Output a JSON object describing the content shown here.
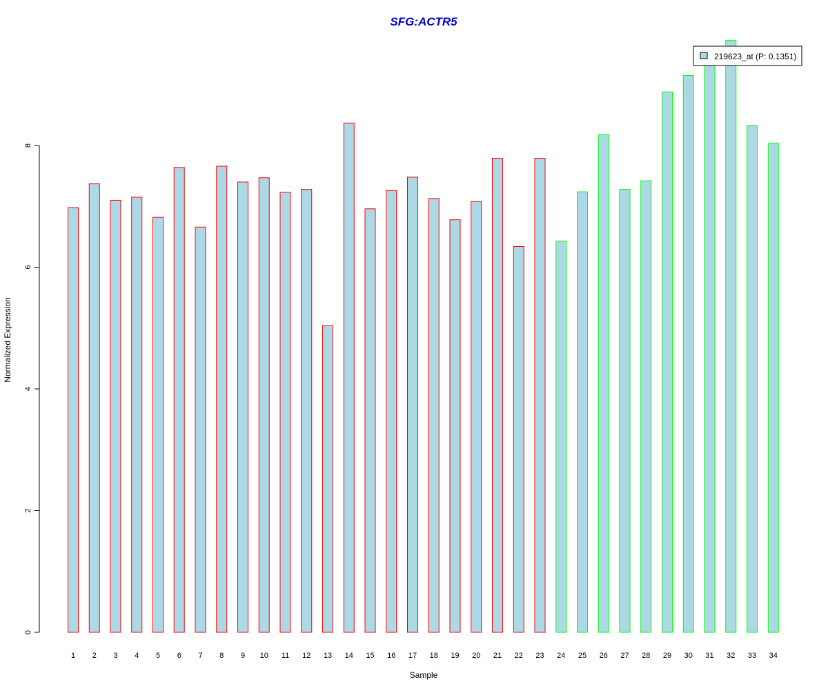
{
  "chart_data": {
    "type": "bar",
    "title": "SFG:ACTR5",
    "xlabel": "Sample",
    "ylabel": "Normalized Expression",
    "categories": [
      "1",
      "2",
      "3",
      "4",
      "5",
      "6",
      "7",
      "8",
      "9",
      "10",
      "11",
      "12",
      "13",
      "14",
      "15",
      "16",
      "17",
      "18",
      "19",
      "20",
      "21",
      "22",
      "23",
      "24",
      "25",
      "26",
      "27",
      "28",
      "29",
      "30",
      "31",
      "32",
      "33",
      "34"
    ],
    "series": [
      {
        "name": "219623_at (P: 0.1351)",
        "values": [
          6.98,
          7.37,
          7.1,
          7.15,
          6.82,
          7.64,
          6.66,
          7.66,
          7.4,
          7.47,
          7.23,
          7.28,
          5.04,
          8.37,
          6.96,
          7.26,
          7.48,
          7.13,
          6.78,
          7.08,
          7.79,
          6.34,
          7.79,
          6.43,
          7.24,
          8.18,
          7.28,
          7.42,
          8.88,
          9.15,
          9.35,
          9.73,
          8.33,
          8.04
        ]
      }
    ],
    "group_colors": [
      "#ff0000",
      "#ff0000",
      "#ff0000",
      "#ff0000",
      "#ff0000",
      "#ff0000",
      "#ff0000",
      "#ff0000",
      "#ff0000",
      "#ff0000",
      "#ff0000",
      "#ff0000",
      "#ff0000",
      "#ff0000",
      "#ff0000",
      "#ff0000",
      "#ff0000",
      "#ff0000",
      "#ff0000",
      "#ff0000",
      "#ff0000",
      "#ff0000",
      "#ff0000",
      "#00ff00",
      "#00ff00",
      "#00ff00",
      "#00ff00",
      "#00ff00",
      "#00ff00",
      "#00ff00",
      "#00ff00",
      "#00ff00",
      "#00ff00",
      "#00ff00"
    ],
    "bar_fill": "#add8e6",
    "title_color": "#0000cd",
    "ylim": [
      0,
      9.8
    ],
    "yticks": [
      0,
      2,
      4,
      6,
      8
    ],
    "grid": false,
    "legend_position": "top-right"
  }
}
